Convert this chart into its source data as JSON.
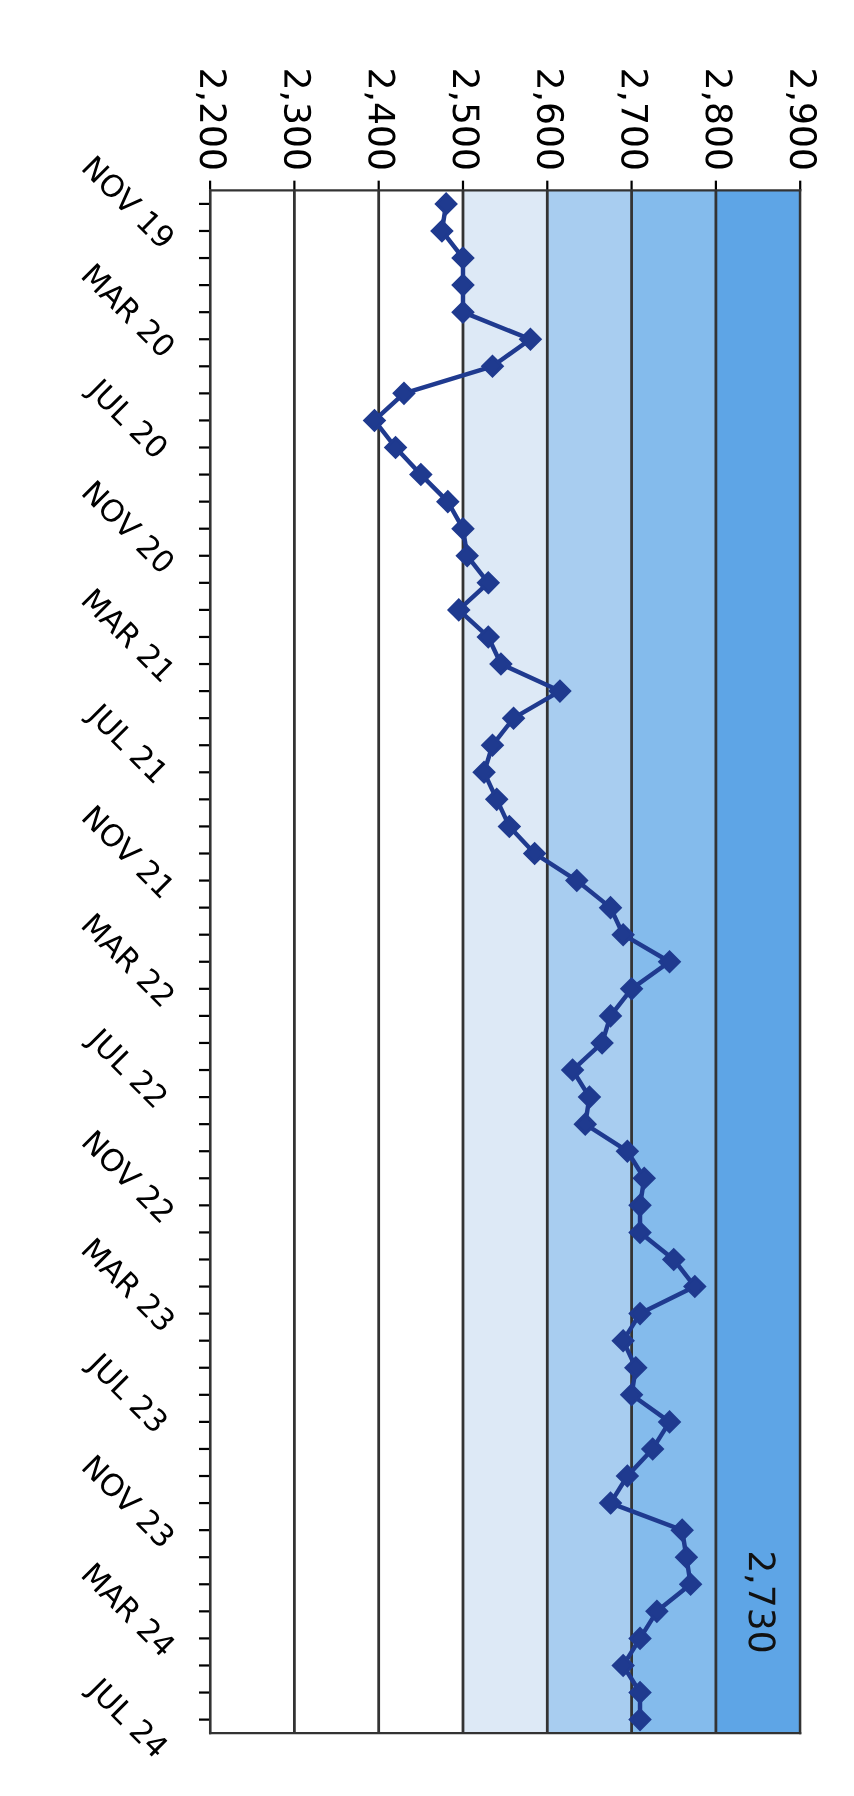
{
  "chart_data": {
    "type": "line",
    "orientation": "horizontal",
    "categories": [
      "NOV 19",
      null,
      null,
      null,
      "MAR 20",
      null,
      null,
      null,
      "JUL 20",
      null,
      null,
      null,
      "NOV 20",
      null,
      null,
      null,
      "MAR 21",
      null,
      null,
      null,
      "JUL 21",
      null,
      null,
      null,
      "NOV 21",
      null,
      null,
      null,
      "MAR 22",
      null,
      null,
      null,
      "JUL 22",
      null,
      null,
      null,
      "NOV 22",
      null,
      null,
      null,
      "MAR 23",
      null,
      null,
      null,
      "JUL 23",
      null,
      null,
      null,
      "NOV 23",
      null,
      null,
      null,
      "MAR 24",
      null,
      null,
      null,
      "JUL 24"
    ],
    "series": [
      {
        "color": "#1f3a8f",
        "values": [
          2480,
          2475,
          2500,
          2500,
          2500,
          2580,
          2535,
          2430,
          2395,
          2420,
          2450,
          2482,
          2500,
          2505,
          2530,
          2495,
          2530,
          2545,
          2615,
          2560,
          2535,
          2525,
          2540,
          2555,
          2585,
          2635,
          2675,
          2690,
          2745,
          2700,
          2675,
          2665,
          2630,
          2650,
          2645,
          2695,
          2715,
          2710,
          2710,
          2750,
          2775,
          2710,
          2690,
          2705,
          2700,
          2745,
          2725,
          2695,
          2675,
          2760,
          2765,
          2770,
          2730,
          2710,
          2690,
          2710,
          2710
        ]
      }
    ],
    "xlim": [
      2200,
      2900
    ],
    "xticks": [
      {
        "value": 2200,
        "label": "2,200"
      },
      {
        "value": 2300,
        "label": "2,300"
      },
      {
        "value": 2400,
        "label": "2,400"
      },
      {
        "value": 2500,
        "label": "2,500"
      },
      {
        "value": 2600,
        "label": "2,600"
      },
      {
        "value": 2700,
        "label": "2,700"
      },
      {
        "value": 2800,
        "label": "2,800"
      },
      {
        "value": 2900,
        "label": "2,900"
      }
    ],
    "bands": [
      {
        "axis": "x",
        "from": 2500,
        "to": 2600,
        "color": "#dde9f6"
      },
      {
        "axis": "x",
        "from": 2600,
        "to": 2700,
        "color": "#a8cdf0"
      },
      {
        "axis": "x",
        "from": 2700,
        "to": 2800,
        "color": "#84bbec"
      },
      {
        "axis": "x",
        "from": 2800,
        "to": 2900,
        "color": "#5ea5e6"
      }
    ],
    "grid": "x",
    "marker": "diamond",
    "line_style": "solid",
    "annotations": [
      "2,730"
    ]
  }
}
